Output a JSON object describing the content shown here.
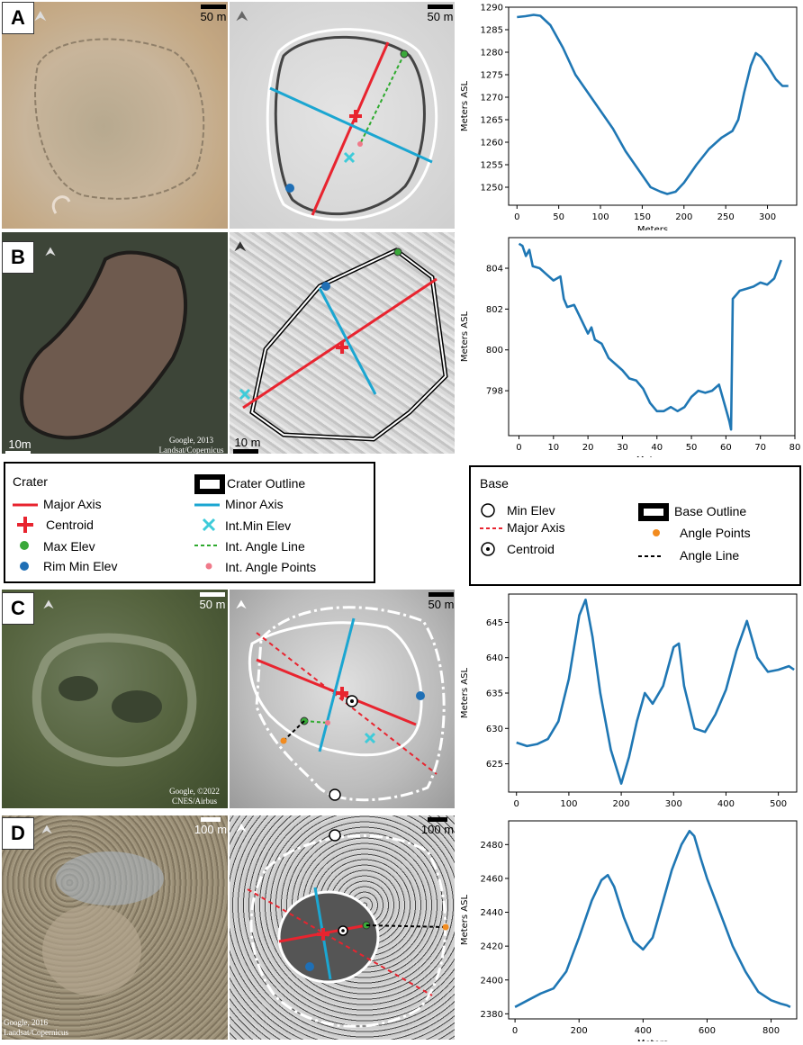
{
  "panels": [
    {
      "letter": "A",
      "scale_left": "50 m",
      "scale_right": "50 m",
      "credit": ""
    },
    {
      "letter": "B",
      "scale_left": "10m",
      "scale_right": "10 m",
      "credit": "Google, 2013\nLandsat/Copernicus"
    },
    {
      "letter": "C",
      "scale_left": "50 m",
      "scale_right": "50 m",
      "credit": "Google, ©2022\nCNES/Airbus"
    },
    {
      "letter": "D",
      "scale_left": "100 m",
      "scale_right": "100 m",
      "credit": "Google, 2016\nLandsat/Copernicus"
    }
  ],
  "legend_crater": {
    "title": "Crater",
    "items": {
      "major_axis": "Major Axis",
      "centroid": "Centroid",
      "max_elev": "Max Elev",
      "rim_min_elev": "Rim Min Elev",
      "crater_outline": "Crater Outline",
      "minor_axis": "Minor Axis",
      "int_min_elev": "Int.Min Elev",
      "int_angle_line": "Int. Angle Line",
      "int_angle_points": "Int. Angle Points"
    }
  },
  "legend_base": {
    "title": "Base",
    "items": {
      "min_elev": "Min  Elev",
      "major_axis": "Major Axis",
      "centroid": "Centroid",
      "base_outline": "Base Outline",
      "angle_points": "Angle Points",
      "angle_line": "Angle Line"
    }
  },
  "colors": {
    "line": "#1f77b4",
    "major_axis": "#e8242f",
    "minor_axis": "#1ba6d1",
    "max_elev": "#3aa83a",
    "rim_min": "#1f6fb5",
    "angle_point": "#f28b1e",
    "int_angle_point": "#f07a8a"
  },
  "chart_data": [
    {
      "type": "line",
      "panel": "A",
      "xlabel": "Meters",
      "ylabel": "Meters ASL",
      "xlim": [
        -10,
        335
      ],
      "ylim": [
        1246,
        1290
      ],
      "xticks": [
        0,
        50,
        100,
        150,
        200,
        250,
        300
      ],
      "yticks": [
        1250,
        1255,
        1260,
        1265,
        1270,
        1275,
        1280,
        1285,
        1290
      ],
      "x": [
        0,
        10,
        20,
        28,
        40,
        55,
        70,
        85,
        100,
        115,
        130,
        145,
        160,
        172,
        180,
        190,
        200,
        215,
        230,
        245,
        258,
        265,
        272,
        280,
        286,
        292,
        300,
        310,
        318,
        325
      ],
      "y": [
        1287.8,
        1288,
        1288.3,
        1288.1,
        1286,
        1281,
        1275,
        1271,
        1267,
        1263,
        1258,
        1254,
        1250,
        1249,
        1248.5,
        1249,
        1251,
        1255,
        1258.5,
        1261,
        1262.5,
        1265,
        1271,
        1277,
        1279.8,
        1279,
        1277,
        1274,
        1272.5,
        1272.5
      ]
    },
    {
      "type": "line",
      "panel": "B",
      "xlabel": "Meters",
      "ylabel": "Meters ASL",
      "xlim": [
        -3,
        80
      ],
      "ylim": [
        795.8,
        805.5
      ],
      "xticks": [
        0,
        10,
        20,
        30,
        40,
        50,
        60,
        70,
        80
      ],
      "yticks": [
        798,
        800,
        802,
        804
      ],
      "x": [
        0,
        1,
        2,
        3,
        4,
        6,
        8,
        10,
        12,
        13,
        14,
        16,
        18,
        20,
        21,
        22,
        24,
        26,
        28,
        30,
        32,
        34,
        36,
        38,
        40,
        42,
        44,
        46,
        48,
        50,
        52,
        54,
        56,
        58,
        60,
        61,
        61.5,
        62,
        63,
        64,
        66,
        68,
        70,
        72,
        74,
        76
      ],
      "y": [
        805.2,
        805.1,
        804.6,
        804.9,
        804.1,
        804,
        803.7,
        803.4,
        803.6,
        802.5,
        802.1,
        802.2,
        801.5,
        800.8,
        801.1,
        800.5,
        800.3,
        799.6,
        799.3,
        799,
        798.6,
        798.5,
        798.1,
        797.4,
        797,
        797,
        797.2,
        797,
        797.2,
        797.7,
        798,
        797.9,
        798,
        798.3,
        797.1,
        796.5,
        796.1,
        802.5,
        802.7,
        802.9,
        803,
        803.1,
        803.3,
        803.2,
        803.5,
        804.4
      ]
    },
    {
      "type": "line",
      "panel": "C",
      "xlabel": "Meters",
      "ylabel": "Meters ASL",
      "xlim": [
        -15,
        535
      ],
      "ylim": [
        621,
        649
      ],
      "xticks": [
        0,
        100,
        200,
        300,
        400,
        500
      ],
      "yticks": [
        625,
        630,
        635,
        640,
        645
      ],
      "x": [
        0,
        20,
        40,
        60,
        80,
        100,
        120,
        132,
        145,
        160,
        180,
        200,
        215,
        230,
        245,
        260,
        280,
        300,
        310,
        320,
        340,
        360,
        380,
        400,
        420,
        440,
        460,
        480,
        500,
        520,
        530
      ],
      "y": [
        628,
        627.5,
        627.8,
        628.5,
        631,
        637,
        646,
        648.2,
        643,
        635,
        627,
        622.2,
        626,
        631,
        635,
        633.5,
        636,
        641.5,
        642,
        636,
        630,
        629.5,
        632,
        635.5,
        641,
        645.2,
        640,
        638,
        638.3,
        638.8,
        638.3
      ]
    },
    {
      "type": "line",
      "panel": "D",
      "xlabel": "Meters",
      "ylabel": "Meters ASL",
      "xlim": [
        -20,
        880
      ],
      "ylim": [
        2377,
        2494
      ],
      "xticks": [
        0,
        200,
        400,
        600,
        800
      ],
      "yticks": [
        2380,
        2400,
        2420,
        2440,
        2460,
        2480
      ],
      "x": [
        0,
        40,
        80,
        120,
        160,
        200,
        240,
        270,
        290,
        310,
        340,
        370,
        400,
        430,
        460,
        490,
        520,
        545,
        560,
        580,
        600,
        640,
        680,
        720,
        760,
        800,
        830,
        850,
        860
      ],
      "y": [
        2384,
        2388,
        2392,
        2395,
        2405,
        2425,
        2447,
        2459,
        2462,
        2455,
        2437,
        2423,
        2418,
        2425,
        2445,
        2465,
        2480,
        2488,
        2485,
        2472,
        2460,
        2440,
        2420,
        2405,
        2393,
        2388,
        2386,
        2385,
        2384
      ]
    }
  ]
}
